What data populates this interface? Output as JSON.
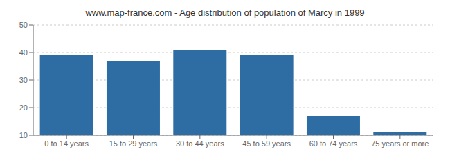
{
  "chart_data": {
    "type": "bar",
    "title": "www.map-france.com - Age distribution of population of Marcy in 1999",
    "categories": [
      "0 to 14 years",
      "15 to 29 years",
      "30 to 44 years",
      "45 to 59 years",
      "60 to 74 years",
      "75 years or more"
    ],
    "values": [
      39,
      37,
      41,
      39,
      17,
      11
    ],
    "color": "#2e6da4",
    "ylim": [
      10,
      50
    ],
    "yticks": [
      10,
      20,
      30,
      40,
      50
    ],
    "grid": true
  }
}
